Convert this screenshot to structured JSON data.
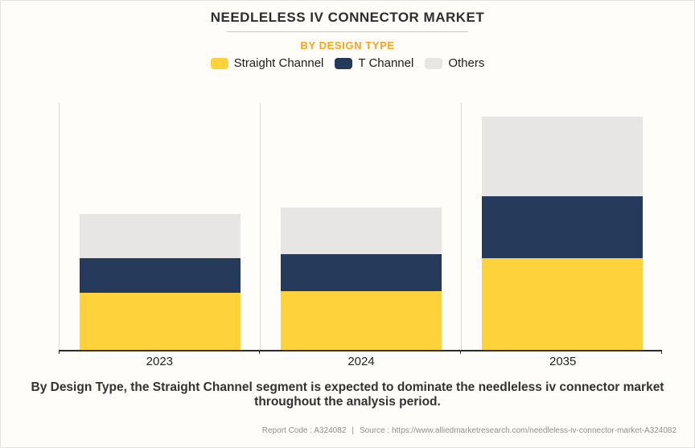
{
  "header": {
    "title": "NEEDLELESS IV CONNECTOR MARKET",
    "subtitle": "BY DESIGN TYPE"
  },
  "chart_data": {
    "type": "bar",
    "stacked": true,
    "categories": [
      "2023",
      "2024",
      "2035"
    ],
    "series": [
      {
        "name": "Straight Channel",
        "color": "#FDD23B",
        "values": [
          71,
          73,
          114
        ]
      },
      {
        "name": "T Channel",
        "color": "#263A5B",
        "values": [
          43,
          46,
          77
        ]
      },
      {
        "name": "Others",
        "color": "#E7E6E4",
        "values": [
          55,
          58,
          99
        ]
      }
    ],
    "title": "NEEDLELESS IV CONNECTOR MARKET",
    "subtitle": "BY DESIGN TYPE",
    "xlabel": "",
    "ylabel": "",
    "ylim": [
      0,
      307
    ],
    "grid": false,
    "legend_position": "top",
    "y_axis_labels_shown": false
  },
  "footer": {
    "caption": "By Design Type, the Straight Channel segment is expected to dominate the needleless iv connector market throughout the analysis period.",
    "report_code": "Report Code : A324082",
    "separator": "|",
    "source": "Source : https://www.alliedmarketresearch.com/needleless-iv-connector-market-A324082"
  },
  "colors": {
    "subtitle_accent": "#F9A51A",
    "axis": "#2B2B2B",
    "plot_border": "#DCDBD8",
    "background": "#FFFDF9",
    "caption_text": "#323232",
    "meta_text": "#8F8F8F"
  }
}
